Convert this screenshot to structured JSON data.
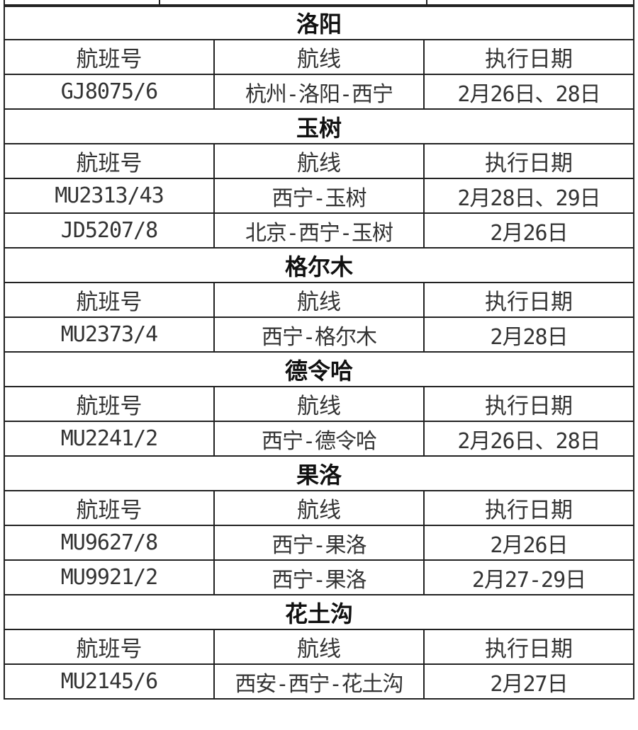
{
  "columns": [
    "航班号",
    "航线",
    "执行日期"
  ],
  "sections": [
    {
      "city": "洛阳",
      "flights": [
        {
          "flight": "GJ8075/6",
          "route": "杭州-洛阳-西宁",
          "dates": "2月26日、28日"
        }
      ]
    },
    {
      "city": "玉树",
      "flights": [
        {
          "flight": "MU2313/43",
          "route": "西宁-玉树",
          "dates": "2月28日、29日"
        },
        {
          "flight": "JD5207/8",
          "route": "北京-西宁-玉树",
          "dates": "2月26日"
        }
      ]
    },
    {
      "city": "格尔木",
      "flights": [
        {
          "flight": "MU2373/4",
          "route": "西宁-格尔木",
          "dates": "2月28日"
        }
      ]
    },
    {
      "city": "德令哈",
      "flights": [
        {
          "flight": "MU2241/2",
          "route": "西宁-德令哈",
          "dates": "2月26日、28日"
        }
      ]
    },
    {
      "city": "果洛",
      "flights": [
        {
          "flight": "MU9627/8",
          "route": "西宁-果洛",
          "dates": "2月26日"
        },
        {
          "flight": "MU9921/2",
          "route": "西宁-果洛",
          "dates": "2月27-29日"
        }
      ]
    },
    {
      "city": "花土沟",
      "flights": [
        {
          "flight": "MU2145/6",
          "route": "西安-西宁-花土沟",
          "dates": "2月27日"
        }
      ]
    }
  ]
}
